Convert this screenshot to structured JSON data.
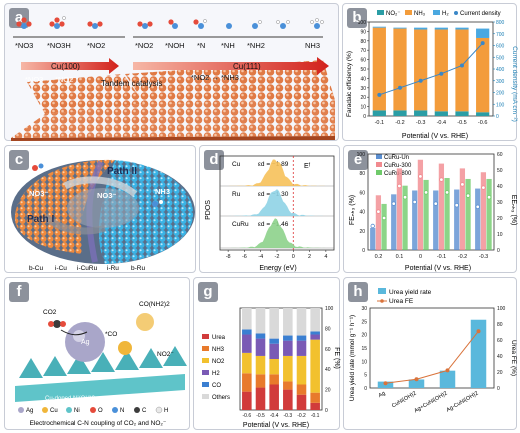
{
  "panels": {
    "a": "a",
    "b": "b",
    "c": "c",
    "d": "d",
    "e": "e",
    "f": "f",
    "g": "g",
    "h": "h"
  },
  "a": {
    "species_top": [
      "*NO3",
      "*NO3H",
      "*NO2",
      "*NO2",
      "*NOH",
      "*N",
      "*NH",
      "*NH2",
      "NH3"
    ],
    "cu100": "Cu(100)",
    "cu111": "Cu(111)",
    "step_left": "*NO3 → *NO2",
    "tandem": "Tandem catalysis",
    "step_right": "*NO2 → *NH3"
  },
  "b": {
    "legend": [
      "NO₂⁻",
      "NH₃",
      "H₂",
      "Current density"
    ],
    "ylabel_left": "Faradaic efficiency (%)",
    "ylabel_right": "Current density (mA cm⁻²)",
    "xlabel": "Potential (V vs. RHE)"
  },
  "c": {
    "path1": "Path I",
    "path2": "Path II",
    "no3a": "NO3⁻",
    "no3b": "NO3⁻",
    "nh3": "NH3",
    "bottom": [
      "b-Cu",
      "i-Cu",
      "i-CuRu",
      "i-Ru",
      "b-Ru"
    ]
  },
  "d": {
    "ylabel": "PDOS",
    "xlabel": "Energy (eV)",
    "ef": "Eᶠ",
    "series": [
      {
        "name": "Cu",
        "ed": "εd = −1.89"
      },
      {
        "name": "Ru",
        "ed": "εd = −1.30"
      },
      {
        "name": "CuRu",
        "ed": "εd = −1.46"
      }
    ]
  },
  "e": {
    "legend": [
      "CuRu-Un",
      "CuRu-300",
      "CuRu-800"
    ],
    "ylabel_left": "FEₙₕ₃ (%)",
    "ylabel_right": "EEₙₕ₃ (%)",
    "xlabel": "Potential (V vs. RHE)"
  },
  "f": {
    "caption": "Electrochemical C-N coupling of CO₂ and NO₂⁻",
    "tags": [
      "CO2",
      "*CO",
      "CO(NH2)2",
      "NO2⁻",
      "Ag",
      "Cu-doped Ni(OH)2"
    ],
    "legend": [
      "Ag",
      "Cu",
      "Ni",
      "O",
      "N",
      "C",
      "H"
    ]
  },
  "g": {
    "legend": [
      "Urea",
      "NH3",
      "NO2",
      "H2",
      "CO",
      "Others"
    ],
    "ylabel": "FE (%)",
    "xlabel": "Potential (V vs. RHE)"
  },
  "h": {
    "legend": [
      "Urea yield rate",
      "Urea FE"
    ],
    "ylabel_left": "Urea yield rate (mmol g⁻¹ h⁻¹)",
    "ylabel_right": "Urea FE (%)"
  },
  "chart_data": [
    {
      "type": "bar",
      "panel": "b",
      "x": [
        -0.1,
        -0.2,
        -0.3,
        -0.4,
        -0.5,
        -0.6
      ],
      "categories": [
        "-0.1",
        "-0.2",
        "-0.3",
        "-0.4",
        "-0.5",
        "-0.6"
      ],
      "series": [
        {
          "name": "NO₂⁻",
          "values": [
            6,
            6,
            6,
            5,
            5,
            4
          ]
        },
        {
          "name": "NH₃",
          "values": [
            88,
            87,
            86,
            87,
            87,
            79
          ]
        },
        {
          "name": "H₂",
          "values": [
            1,
            1,
            2,
            2,
            2,
            10
          ]
        },
        {
          "name": "Current density",
          "values": [
            180,
            240,
            300,
            360,
            430,
            620
          ]
        }
      ],
      "ylim": [
        0,
        100
      ],
      "y2lim": [
        0,
        800
      ],
      "yticks": [
        0,
        10,
        20,
        30,
        40,
        50,
        60,
        70,
        80,
        90,
        100
      ],
      "y2ticks": [
        0,
        100,
        200,
        300,
        400,
        500,
        600,
        700,
        800
      ]
    },
    {
      "type": "line",
      "panel": "d",
      "xticks": [
        -8,
        -6,
        -4,
        -2,
        0,
        2,
        4
      ],
      "xlim": [
        -9,
        5
      ]
    },
    {
      "type": "bar",
      "panel": "e",
      "categories": [
        "0.2",
        "0.1",
        "0",
        "-0.1",
        "-0.2",
        "-0.3"
      ],
      "series": [
        {
          "name": "CuRu-Un",
          "values": [
            23,
            58,
            62,
            62,
            63,
            64
          ]
        },
        {
          "name": "CuRu-300",
          "values": [
            57,
            85,
            94,
            90,
            85,
            81
          ]
        },
        {
          "name": "CuRu-800",
          "values": [
            48,
            67,
            73,
            75,
            74,
            74
          ]
        }
      ],
      "ee_series": [
        {
          "name": "CuRu-Un",
          "values": [
            15,
            29,
            30,
            29,
            28,
            27
          ]
        },
        {
          "name": "CuRu-300",
          "values": [
            24,
            40,
            46,
            44,
            41,
            39
          ]
        },
        {
          "name": "CuRu-800",
          "values": [
            20,
            33,
            36,
            36,
            34,
            33
          ]
        }
      ],
      "ylim": [
        0,
        100
      ],
      "y2lim": [
        0,
        60
      ],
      "yticks": [
        0,
        20,
        40,
        60,
        80,
        100
      ],
      "y2ticks": [
        0,
        10,
        20,
        30,
        40,
        50,
        60
      ]
    },
    {
      "type": "bar",
      "panel": "g",
      "categories": [
        "-0.6",
        "-0.5",
        "-0.4",
        "-0.3",
        "-0.2",
        "-0.1"
      ],
      "series": [
        {
          "name": "Urea",
          "values": [
            18,
            22,
            25,
            20,
            15,
            7
          ]
        },
        {
          "name": "NH3",
          "values": [
            18,
            13,
            10,
            8,
            10,
            10
          ]
        },
        {
          "name": "NO2",
          "values": [
            20,
            18,
            15,
            25,
            28,
            52
          ]
        },
        {
          "name": "H2",
          "values": [
            18,
            17,
            15,
            15,
            15,
            5
          ]
        },
        {
          "name": "CO",
          "values": [
            5,
            5,
            5,
            5,
            5,
            3
          ]
        },
        {
          "name": "Others",
          "values": [
            21,
            25,
            30,
            27,
            27,
            23
          ]
        }
      ],
      "ylim": [
        0,
        100
      ],
      "yticks": [
        0,
        20,
        40,
        60,
        80,
        100
      ]
    },
    {
      "type": "bar",
      "panel": "h",
      "categories": [
        "Ag",
        "CuNi(OH)2",
        "Ag+CuNi(OH)2",
        "Ag-CuNi(OH)2"
      ],
      "series": [
        {
          "name": "Urea yield rate",
          "values": [
            2.4,
            3.2,
            6.5,
            25.6
          ]
        },
        {
          "name": "Urea FE",
          "values": [
            6,
            11,
            22,
            71
          ]
        }
      ],
      "ylim": [
        0,
        30
      ],
      "y2lim": [
        0,
        100
      ],
      "yticks": [
        0,
        5,
        10,
        15,
        20,
        25,
        30
      ],
      "y2ticks": [
        0,
        20,
        40,
        60,
        80,
        100
      ]
    }
  ]
}
